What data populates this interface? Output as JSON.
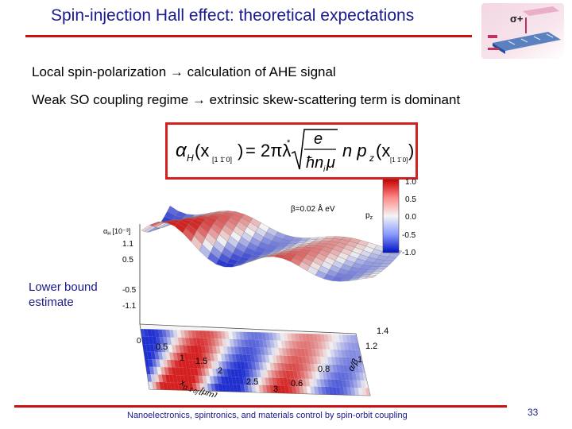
{
  "slide": {
    "title": "Spin-injection Hall effect: theoretical expectations",
    "bullets": [
      "Local spin-polarization → calculation of AHE signal",
      "Weak SO coupling regime → extrinsic skew-scattering term is dominant"
    ],
    "logo_label": "σ+",
    "callout_lines": [
      "Lower bound",
      "estimate"
    ],
    "footer": "Nanoelectronics, spintronics, and materials control by spin-orbit coupling",
    "page_number": "33"
  },
  "formula": {
    "lhs": "α",
    "lhs_sub": "H",
    "arg": "(x",
    "arg_sub": "[1 1̄ 0]",
    "arg_close": ")",
    "equals": "= 2πλ",
    "star": "*",
    "frac_num": "e",
    "frac_den": "ħn",
    "frac_den_sub": "i",
    "frac_den_tail": "μ",
    "rhs_n": "n p",
    "rhs_sub": "z",
    "rhs_arg": "(x",
    "rhs_arg_sub": "[1 1̄ 0]",
    "rhs_close": ")"
  },
  "figure": {
    "annotation": "β=0.02 Å eV",
    "colorbar_title": "p",
    "colorbar_title_sub": "z",
    "colorbar_ticks": [
      "1.0",
      "0.5",
      "0.0",
      "-0.5",
      "-1.0"
    ],
    "z_axis_label": "α",
    "z_axis_label_sub": "H",
    "z_axis_unit": "[10⁻³]",
    "z_ticks": [
      "1.1",
      "0.5",
      "-0.5",
      "-1.1"
    ],
    "z_zero": "0",
    "x_ticks": [
      "0.5",
      "1",
      "1.5",
      "2",
      "2.5",
      "3"
    ],
    "x_axis_label": "x",
    "x_axis_label_sub": "[1 1̄ 0]",
    "x_axis_unit": "[μm]",
    "y_ticks": [
      "1.4",
      "1.2",
      "1",
      "0.8",
      "0.6"
    ],
    "y_axis_label": "α/β",
    "colors": {
      "positive": "#d42020",
      "negative": "#1f2fd0",
      "neutral": "#f2f2f2"
    }
  }
}
